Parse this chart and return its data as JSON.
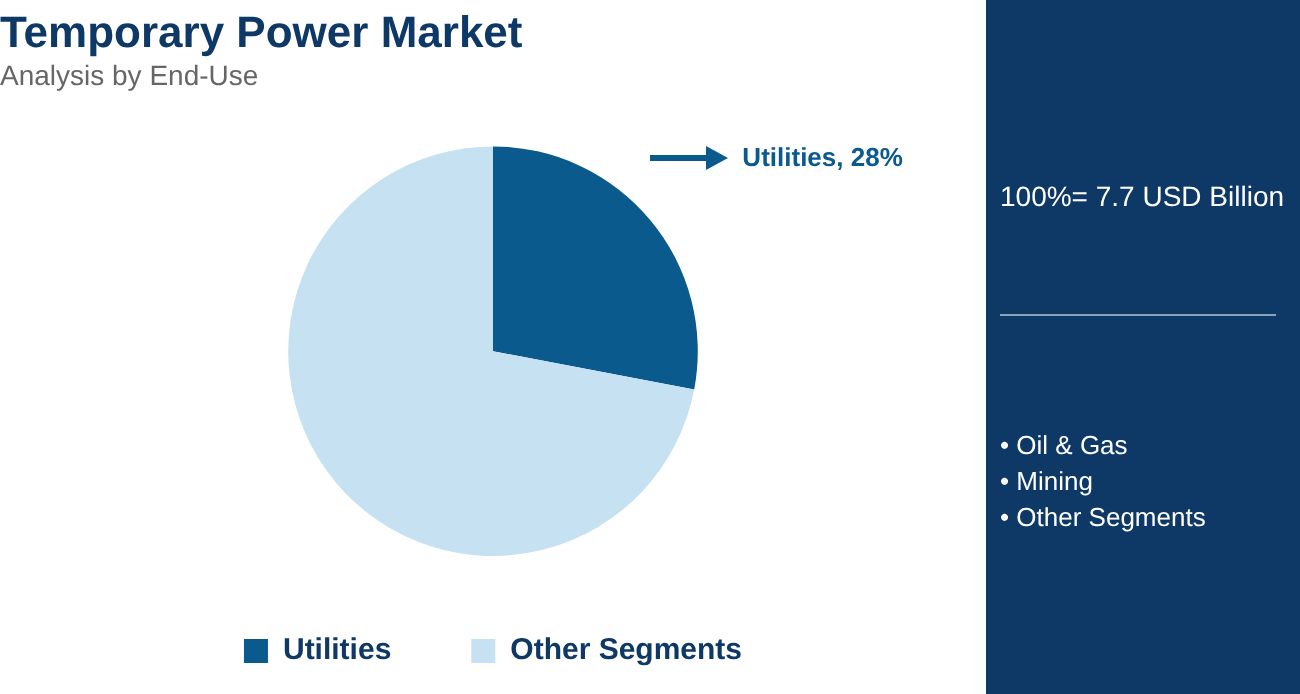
{
  "chart_data": {
    "type": "pie",
    "title": "Temporary Power Market",
    "subtitle": "Analysis by End-Use",
    "categories": [
      "Utilities",
      "Other Segments"
    ],
    "values": [
      28,
      72
    ],
    "colors": [
      "#0b5a8e",
      "#c6e1f1"
    ],
    "value_labels": [
      "Utilities, 28%",
      null
    ],
    "legend": "bottom",
    "annotations": [
      "100%= 7.7 USD Billion",
      "• Oil & Gas",
      "• Mining",
      "• Other Segments"
    ]
  }
}
